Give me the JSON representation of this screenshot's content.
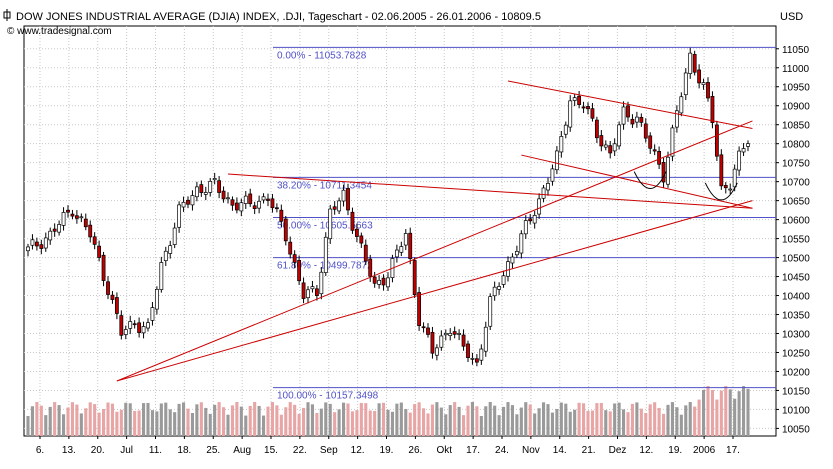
{
  "chart_data": {
    "type": "candlestick",
    "title": "DOW JONES INDUSTRIAL AVERAGE (DJIA) INDEX, .DJI, Tageschart - 02.06.2005 - 26.01.2006 - 10809.5",
    "watermark": "© www.tradesignal.com",
    "currency": "USD",
    "ylim": [
      10030,
      11110
    ],
    "y_ticks": [
      11050,
      11000,
      10950,
      10900,
      10850,
      10800,
      10750,
      10700,
      10650,
      10600,
      10550,
      10500,
      10450,
      10400,
      10350,
      10300,
      10250,
      10200,
      10150,
      10100,
      10050
    ],
    "x_labels": [
      "6.",
      "13.",
      "20.",
      "Jul",
      "11.",
      "18.",
      "25.",
      "Aug",
      "15.",
      "22.",
      "Sep",
      "12.",
      "19.",
      "26.",
      "Okt",
      "17.",
      "24.",
      "Nov",
      "14.",
      "21.",
      "Dez",
      "12.",
      "19.",
      "2006",
      "17."
    ],
    "bar_count": 163,
    "price_path": [
      {
        "bar": 0,
        "price": 10520
      },
      {
        "bar": 5,
        "price": 10560
      },
      {
        "bar": 10,
        "price": 10630
      },
      {
        "bar": 14,
        "price": 10560
      },
      {
        "bar": 18,
        "price": 10420
      },
      {
        "bar": 21,
        "price": 10300
      },
      {
        "bar": 24,
        "price": 10330
      },
      {
        "bar": 27,
        "price": 10310
      },
      {
        "bar": 30,
        "price": 10480
      },
      {
        "bar": 34,
        "price": 10620
      },
      {
        "bar": 38,
        "price": 10680
      },
      {
        "bar": 42,
        "price": 10690
      },
      {
        "bar": 46,
        "price": 10640
      },
      {
        "bar": 50,
        "price": 10640
      },
      {
        "bar": 54,
        "price": 10660
      },
      {
        "bar": 58,
        "price": 10560
      },
      {
        "bar": 62,
        "price": 10400
      },
      {
        "bar": 65,
        "price": 10410
      },
      {
        "bar": 68,
        "price": 10620
      },
      {
        "bar": 71,
        "price": 10660
      },
      {
        "bar": 74,
        "price": 10560
      },
      {
        "bar": 78,
        "price": 10420
      },
      {
        "bar": 81,
        "price": 10460
      },
      {
        "bar": 85,
        "price": 10560
      },
      {
        "bar": 88,
        "price": 10340
      },
      {
        "bar": 91,
        "price": 10250
      },
      {
        "bar": 95,
        "price": 10320
      },
      {
        "bar": 98,
        "price": 10260
      },
      {
        "bar": 101,
        "price": 10220
      },
      {
        "bar": 104,
        "price": 10380
      },
      {
        "bar": 107,
        "price": 10460
      },
      {
        "bar": 110,
        "price": 10530
      },
      {
        "bar": 113,
        "price": 10600
      },
      {
        "bar": 116,
        "price": 10680
      },
      {
        "bar": 119,
        "price": 10760
      },
      {
        "bar": 122,
        "price": 10920
      },
      {
        "bar": 125,
        "price": 10900
      },
      {
        "bar": 128,
        "price": 10830
      },
      {
        "bar": 131,
        "price": 10770
      },
      {
        "bar": 134,
        "price": 10880
      },
      {
        "bar": 137,
        "price": 10870
      },
      {
        "bar": 140,
        "price": 10790
      },
      {
        "bar": 143,
        "price": 10720
      },
      {
        "bar": 146,
        "price": 10880
      },
      {
        "bar": 149,
        "price": 11030
      },
      {
        "bar": 152,
        "price": 10950
      },
      {
        "bar": 154,
        "price": 10860
      },
      {
        "bar": 156,
        "price": 10680
      },
      {
        "bar": 158,
        "price": 10700
      },
      {
        "bar": 160,
        "price": 10760
      },
      {
        "bar": 162,
        "price": 10810
      }
    ],
    "fibonacci_levels": [
      {
        "label": "0.00% - 11053.7828",
        "value": 11053.7828
      },
      {
        "label": "38.20% - 10711.3454",
        "value": 10711.3454
      },
      {
        "label": "50.00% - 10605.5663",
        "value": 10605.5663
      },
      {
        "label": "61.80% - 10499.7872",
        "value": 10499.7872
      },
      {
        "label": "100.00% - 10157.3498",
        "value": 10157.3498
      }
    ],
    "trendlines": [
      {
        "from": {
          "bar": 20,
          "price": 10175
        },
        "to": {
          "bar": 163,
          "price": 10860
        }
      },
      {
        "from": {
          "bar": 20,
          "price": 10175
        },
        "to": {
          "bar": 163,
          "price": 10650
        }
      },
      {
        "from": {
          "bar": 45,
          "price": 10720
        },
        "to": {
          "bar": 163,
          "price": 10630
        }
      },
      {
        "from": {
          "bar": 108,
          "price": 10965
        },
        "to": {
          "bar": 163,
          "price": 10840
        }
      },
      {
        "from": {
          "bar": 111,
          "price": 10770
        },
        "to": {
          "bar": 163,
          "price": 10630
        }
      }
    ],
    "arcs": [
      {
        "center_bar": 140,
        "price": 10695
      },
      {
        "center_bar": 156,
        "price": 10665
      }
    ],
    "grid": true,
    "colors": {
      "up": "#ffffff",
      "down": "#c00000",
      "wick": "#000000",
      "trendline": "#cc0000",
      "fibonacci": "#5050c8",
      "volume_up": "#9a9a9a",
      "volume_down": "#e8a5a5",
      "grid": "#c8c8c8"
    }
  }
}
